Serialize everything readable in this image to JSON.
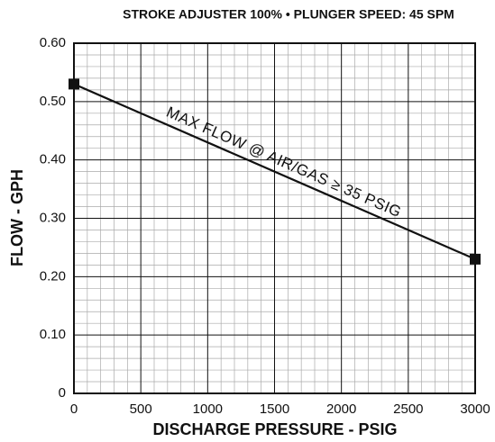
{
  "chart_data": {
    "type": "line",
    "title": "STROKE ADJUSTER 100% • PLUNGER SPEED: 45 SPM",
    "x_label": "DISCHARGE PRESSURE - PSIG",
    "y_label": "FLOW - GPH",
    "annotation": "MAX FLOW @ AIR/GAS ≥ 35 PSIG",
    "x": [
      0,
      3000
    ],
    "series": [
      {
        "name": "MAX FLOW @ AIR/GAS ≥ 35 PSIG",
        "color": "#111111",
        "values": [
          0.53,
          0.23
        ]
      }
    ],
    "xlim": [
      0,
      3000
    ],
    "xticks": [
      0,
      500,
      1000,
      1500,
      2000,
      2500,
      3000
    ],
    "ylim": [
      0,
      0.6
    ],
    "yticks": [
      0,
      {
        "value": 0.1,
        "label": "0.10"
      },
      {
        "value": 0.2,
        "label": "0.20"
      },
      {
        "value": 0.3,
        "label": "0.30"
      },
      {
        "value": 0.4,
        "label": "0.40"
      },
      {
        "value": 0.5,
        "label": "0.50"
      },
      {
        "value": 0.6,
        "label": "0.60"
      }
    ],
    "grid": true
  }
}
